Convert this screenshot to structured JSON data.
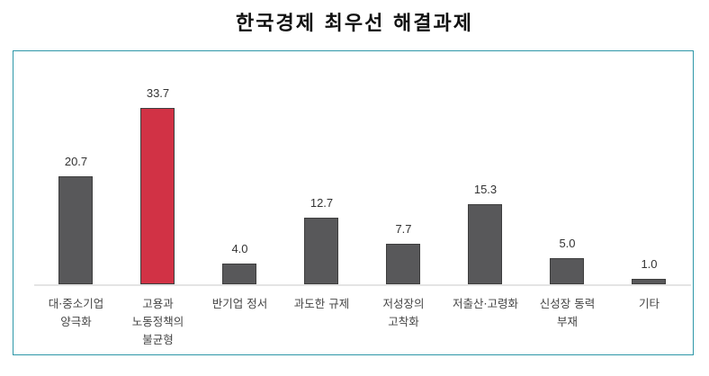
{
  "title": "한국경제 최우선 해결과제",
  "colors": {
    "default_bar": "#58585a",
    "highlight_bar": "#d13245",
    "frame": "#2e97a8"
  },
  "chart_data": {
    "type": "bar",
    "title": "한국경제 최우선 해결과제",
    "xlabel": "",
    "ylabel": "",
    "grid": false,
    "legend": null,
    "categories": [
      "대·중소기업\n양극화",
      "고용과\n노동정책의\n불균형",
      "반기업 정서",
      "과도한 규제",
      "저성장의\n고착화",
      "저출산·고령화",
      "신성장 동력\n부재",
      "기타"
    ],
    "values": [
      20.7,
      33.7,
      4.0,
      12.7,
      7.7,
      15.3,
      5.0,
      1.0
    ],
    "value_labels": [
      "20.7",
      "33.7",
      "4.0",
      "12.7",
      "7.7",
      "15.3",
      "5.0",
      "1.0"
    ],
    "highlight_index": 1,
    "ylim": [
      0,
      35
    ]
  }
}
